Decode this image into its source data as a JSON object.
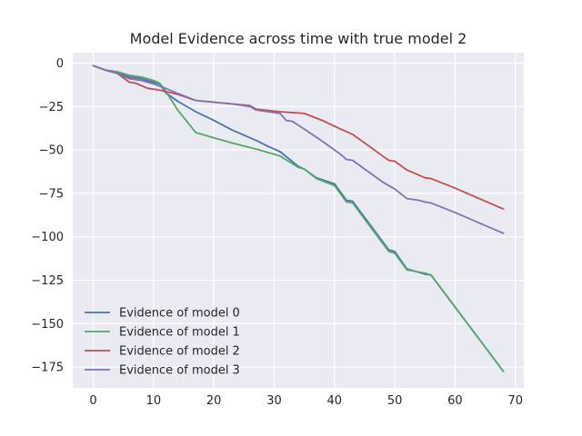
{
  "chart_data": {
    "type": "line",
    "title": "Model Evidence across time with true model 2",
    "xlabel": "",
    "ylabel": "",
    "xlim": [
      -3.4,
      71.4
    ],
    "ylim": [
      -187,
      6
    ],
    "xticks": [
      0,
      10,
      20,
      30,
      40,
      50,
      60,
      70
    ],
    "yticks": [
      0,
      -25,
      -50,
      -75,
      -100,
      -125,
      -150,
      -175
    ],
    "grid": true,
    "legend_position": "lower-left",
    "background": "#eaeaf2",
    "series": [
      {
        "name": "Evidence of model 0",
        "color": "#4c72b0",
        "x": [
          0,
          2,
          4,
          6,
          8,
          10,
          11,
          12,
          14,
          17,
          20,
          23,
          27,
          29,
          31,
          34,
          35,
          37,
          40,
          42,
          43,
          49,
          50,
          52,
          55,
          56,
          68
        ],
        "y": [
          -1.5,
          -4,
          -5.5,
          -8,
          -9,
          -11,
          -12,
          -17,
          -22,
          -28,
          -33,
          -38.5,
          -44.5,
          -48,
          -51,
          -59.5,
          -61,
          -66,
          -69.5,
          -79,
          -79.5,
          -107.5,
          -108.5,
          -118.5,
          -121.5,
          -122,
          -177.5
        ]
      },
      {
        "name": "Evidence of model 1",
        "color": "#55a868",
        "x": [
          0,
          2,
          4,
          6,
          8,
          10,
          11,
          12,
          14,
          17,
          20,
          23,
          27,
          29,
          31,
          34,
          35,
          37,
          40,
          42,
          43,
          49,
          50,
          52,
          55,
          56,
          68
        ],
        "y": [
          -1.5,
          -4,
          -5,
          -7,
          -8,
          -10,
          -11.5,
          -16,
          -27,
          -40,
          -43,
          -46,
          -49.5,
          -51.5,
          -53.5,
          -60,
          -61,
          -66.5,
          -70.5,
          -80,
          -80.5,
          -108.5,
          -109.5,
          -119,
          -121,
          -122,
          -177.5
        ]
      },
      {
        "name": "Evidence of model 2",
        "color": "#c44e52",
        "x": [
          0,
          2,
          4,
          6,
          7,
          9,
          11,
          14,
          17,
          20,
          23,
          26,
          27,
          31,
          35,
          38,
          41,
          43,
          46,
          48,
          49,
          50,
          52,
          55,
          56,
          60,
          64,
          68
        ],
        "y": [
          -1.5,
          -4,
          -6,
          -11,
          -11.5,
          -14.5,
          -15.5,
          -18,
          -21.5,
          -22.5,
          -23.5,
          -24.5,
          -26.5,
          -28,
          -29,
          -33,
          -38,
          -41,
          -48.5,
          -53.5,
          -56,
          -56.5,
          -61.5,
          -66,
          -66.5,
          -72,
          -78,
          -84
        ]
      },
      {
        "name": "Evidence of model 3",
        "color": "#8172b2",
        "x": [
          0,
          2,
          4,
          6,
          8,
          10,
          12,
          14,
          17,
          20,
          23,
          26,
          27,
          31,
          32,
          33,
          35,
          38,
          41,
          42,
          43,
          46,
          48,
          49,
          50,
          52,
          54,
          55,
          56,
          60,
          64,
          68
        ],
        "y": [
          -1.5,
          -4,
          -6,
          -9,
          -10,
          -12,
          -14.5,
          -17.5,
          -21.5,
          -22.5,
          -23.5,
          -25,
          -27,
          -29,
          -33,
          -33.5,
          -38,
          -45,
          -52.5,
          -55.5,
          -56,
          -63.5,
          -68.5,
          -70.5,
          -72.5,
          -78,
          -79,
          -80,
          -80.5,
          -86,
          -92,
          -98
        ]
      }
    ]
  }
}
